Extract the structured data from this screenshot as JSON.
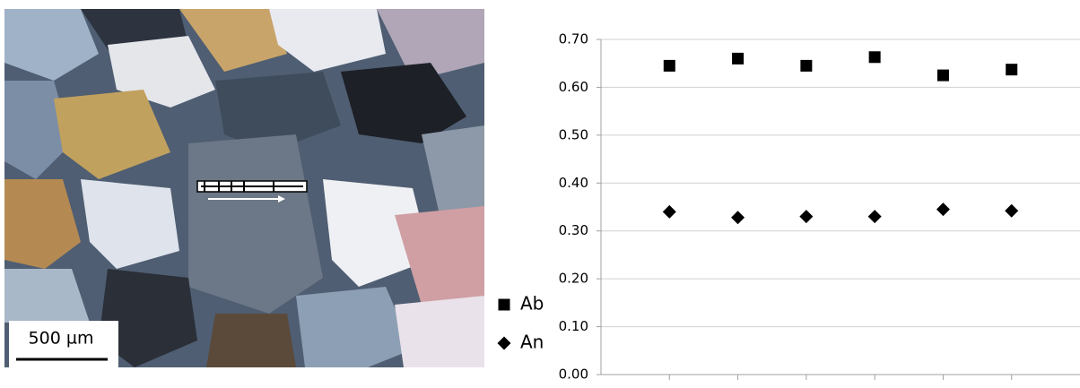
{
  "image": {
    "scale_bar": "500 µm"
  },
  "chart_data": {
    "type": "scatter",
    "x": [
      1,
      2,
      3,
      4,
      5,
      6
    ],
    "xlim": [
      0,
      7
    ],
    "ylim": [
      0,
      0.7
    ],
    "yticks": [
      {
        "value": 0,
        "label": "0.00"
      },
      {
        "value": 0.1,
        "label": "0.10"
      },
      {
        "value": 0.2,
        "label": "0.20"
      },
      {
        "value": 0.3,
        "label": "0.30"
      },
      {
        "value": 0.4,
        "label": "0.40"
      },
      {
        "value": 0.5,
        "label": "0.50"
      },
      {
        "value": 0.6,
        "label": "0.60"
      },
      {
        "value": 0.7,
        "label": "0.70"
      }
    ],
    "grid": true,
    "series": [
      {
        "name": "Ab",
        "color": "#000000",
        "marker": "square",
        "values": [
          0.645,
          0.66,
          0.645,
          0.663,
          0.625,
          0.637
        ]
      },
      {
        "name": "An",
        "color": "#000000",
        "marker": "diamond",
        "values": [
          0.34,
          0.328,
          0.33,
          0.33,
          0.345,
          0.342
        ]
      }
    ]
  }
}
